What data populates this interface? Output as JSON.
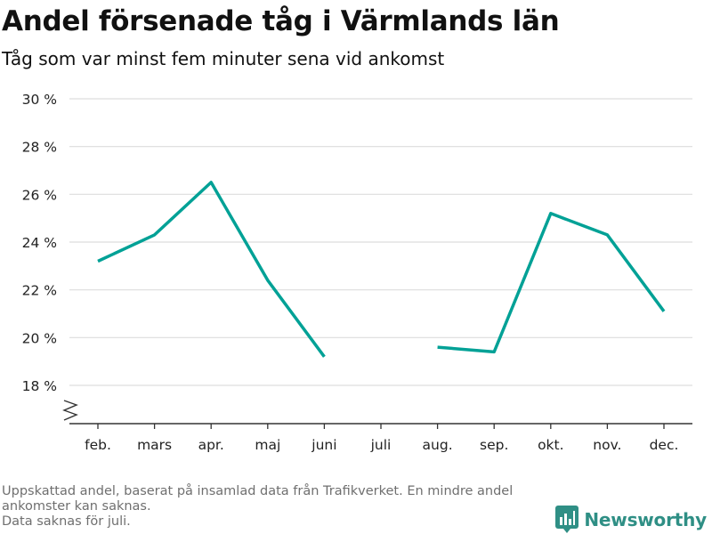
{
  "header": {
    "title": "Andel försenade tåg i Värmlands län",
    "subtitle": "Tåg som var minst fem minuter sena vid ankomst"
  },
  "footnote": {
    "line1": "Uppskattad andel, baserat på insamlad data från Trafikverket. En mindre andel ankomster kan saknas.",
    "line2": "Data saknas för juli."
  },
  "brand": {
    "name": "Newsworthy",
    "logo_icon": "bar-chart-icon",
    "color": "#2f8f85"
  },
  "chart_data": {
    "type": "line",
    "categories": [
      "feb.",
      "mars",
      "apr.",
      "maj",
      "juni",
      "juli",
      "aug.",
      "sep.",
      "okt.",
      "nov.",
      "dec."
    ],
    "series": [
      {
        "values": [
          23.2,
          24.3,
          26.5,
          22.4,
          19.2,
          null,
          19.6,
          19.4,
          25.2,
          24.3,
          21.1
        ]
      }
    ],
    "yticks": [
      18,
      20,
      22,
      24,
      26,
      28,
      30
    ],
    "ytick_labels": [
      "18 %",
      "20 %",
      "22 %",
      "24 %",
      "26 %",
      "28 %",
      "30 %"
    ],
    "ylim": [
      18,
      30
    ],
    "axis_break": true,
    "grid": true,
    "line_color": "#00a196",
    "grid_color": "#dddddd"
  }
}
